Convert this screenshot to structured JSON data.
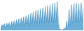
{
  "chart_data": {
    "type": "area",
    "series": [
      {
        "type": "area",
        "color": "#6BAED6",
        "values": [
          5,
          12,
          8,
          14,
          6,
          15,
          9,
          16,
          7,
          18,
          10,
          20,
          8,
          22,
          11,
          24,
          9,
          26,
          12,
          28,
          10,
          30,
          13,
          32,
          11,
          35,
          14,
          38,
          12,
          40,
          15,
          42,
          13,
          44,
          16,
          46,
          14,
          48,
          17,
          50,
          15,
          52,
          18,
          54,
          16,
          56,
          19,
          58,
          17,
          3,
          2,
          1,
          2,
          4,
          3,
          20,
          5,
          42,
          10,
          52,
          15,
          54,
          18,
          55,
          16,
          53,
          19,
          56,
          17,
          52
        ]
      },
      {
        "type": "line",
        "color": "#4A90C4",
        "values": [
          5,
          12,
          8,
          14,
          6,
          15,
          9,
          16,
          7,
          18,
          10,
          20,
          8,
          22,
          11,
          24,
          9,
          26,
          12,
          28,
          10,
          30,
          13,
          32,
          11,
          35,
          14,
          38,
          12,
          40,
          15,
          42,
          13,
          44,
          16,
          46,
          14,
          48,
          17,
          50,
          15,
          52,
          18,
          54,
          16,
          56,
          19,
          58,
          17,
          3,
          2,
          1,
          2,
          4,
          3,
          20,
          5,
          42,
          10,
          52,
          15,
          54,
          18,
          55,
          16,
          53,
          19,
          56,
          17,
          52
        ]
      }
    ],
    "xlim": [
      0,
      69
    ],
    "ylim": [
      0,
      59.16
    ],
    "tick_labels": false,
    "grid": false
  }
}
